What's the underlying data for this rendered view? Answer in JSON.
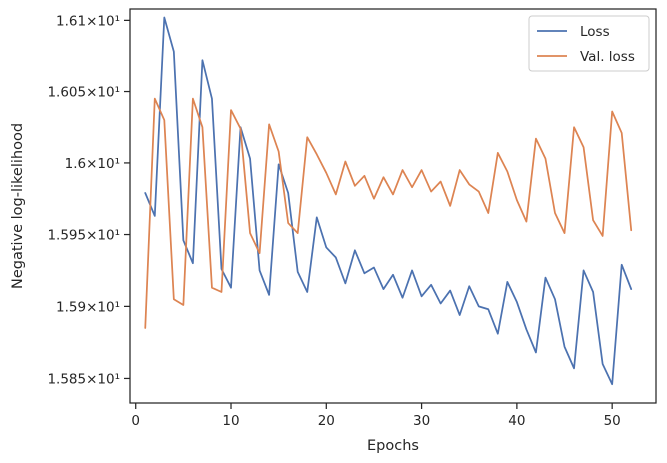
{
  "chart_data": {
    "type": "line",
    "xlabel": "Epochs",
    "ylabel": "Negative log-likelihood",
    "xlim": [
      -0.6,
      54.6
    ],
    "ylim": [
      15.833,
      16.108
    ],
    "y_scale": "log",
    "grid": false,
    "legend_position": "top-right",
    "x_ticks": [
      {
        "value": 0,
        "label": "0"
      },
      {
        "value": 10,
        "label": "10"
      },
      {
        "value": 20,
        "label": "20"
      },
      {
        "value": 30,
        "label": "30"
      },
      {
        "value": 40,
        "label": "40"
      },
      {
        "value": 50,
        "label": "50"
      }
    ],
    "y_ticks": [
      {
        "value": 15.85,
        "label": "1.585×10¹"
      },
      {
        "value": 15.9,
        "label": "1.59×10¹"
      },
      {
        "value": 15.95,
        "label": "1.595×10¹"
      },
      {
        "value": 16.0,
        "label": "1.6×10¹"
      },
      {
        "value": 16.05,
        "label": "1.605×10¹"
      },
      {
        "value": 16.1,
        "label": "1.61×10¹"
      }
    ],
    "x": [
      1,
      2,
      3,
      4,
      5,
      6,
      7,
      8,
      9,
      10,
      11,
      12,
      13,
      14,
      15,
      16,
      17,
      18,
      19,
      20,
      21,
      22,
      23,
      24,
      25,
      26,
      27,
      28,
      29,
      30,
      31,
      32,
      33,
      34,
      35,
      36,
      37,
      38,
      39,
      40,
      41,
      42,
      43,
      44,
      45,
      46,
      47,
      48,
      49,
      50,
      51,
      52
    ],
    "series": [
      {
        "name": "Loss",
        "color": "#4c72b0",
        "values": [
          15.979,
          15.963,
          16.102,
          16.078,
          15.946,
          15.93,
          16.072,
          16.045,
          15.926,
          15.913,
          16.025,
          16.003,
          15.925,
          15.908,
          15.999,
          15.979,
          15.924,
          15.91,
          15.962,
          15.941,
          15.934,
          15.916,
          15.939,
          15.923,
          15.927,
          15.912,
          15.922,
          15.906,
          15.925,
          15.907,
          15.915,
          15.902,
          15.911,
          15.894,
          15.914,
          15.9,
          15.898,
          15.881,
          15.917,
          15.903,
          15.884,
          15.868,
          15.92,
          15.905,
          15.872,
          15.857,
          15.925,
          15.91,
          15.86,
          15.846,
          15.929,
          15.912
        ]
      },
      {
        "name": "Val. loss",
        "color": "#dd8452",
        "values": [
          15.885,
          16.045,
          16.03,
          15.905,
          15.901,
          16.045,
          16.025,
          15.913,
          15.91,
          16.037,
          16.024,
          15.951,
          15.937,
          16.027,
          16.008,
          15.958,
          15.951,
          16.018,
          16.006,
          15.993,
          15.978,
          16.001,
          15.984,
          15.991,
          15.975,
          15.99,
          15.978,
          15.995,
          15.983,
          15.995,
          15.98,
          15.987,
          15.97,
          15.995,
          15.985,
          15.98,
          15.965,
          16.007,
          15.994,
          15.974,
          15.959,
          16.017,
          16.003,
          15.965,
          15.951,
          16.025,
          16.011,
          15.96,
          15.949,
          16.036,
          16.021,
          15.953
        ]
      }
    ]
  }
}
